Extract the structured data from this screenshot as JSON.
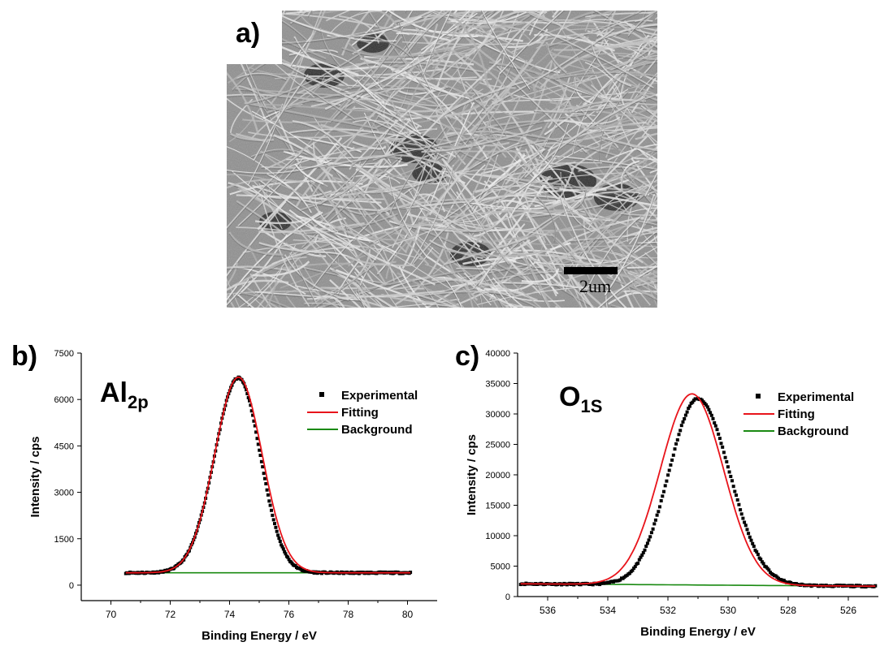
{
  "panels": {
    "a": {
      "label": "a)",
      "scale_bar_label": "2um"
    },
    "b": {
      "label": "b)",
      "peak_name": "Al",
      "peak_sub": "2p"
    },
    "c": {
      "label": "c)",
      "peak_name": "O",
      "peak_sub": "1S"
    }
  },
  "colors": {
    "experimental": "#000000",
    "fitting": "#e8141b",
    "background": "#1a8a12"
  },
  "chart_data": [
    {
      "type": "scatter",
      "panel": "b",
      "xlabel": "Binding Energy / eV",
      "ylabel": "Intensity / cps",
      "xlim": [
        69,
        81
      ],
      "ylim": [
        -500,
        7500
      ],
      "xticks": [
        70,
        72,
        74,
        76,
        78,
        80
      ],
      "yticks": [
        0,
        1500,
        3000,
        4500,
        6000,
        7500
      ],
      "x_reversed": false,
      "legend_position": "top-right",
      "series": [
        {
          "name": "Experimental",
          "kind": "points",
          "x_range": [
            70.5,
            80.1
          ],
          "peak_center": 74.3,
          "peak_height": 6700,
          "baseline": 400
        },
        {
          "name": "Fitting",
          "kind": "line",
          "peak_center": 74.3,
          "peak_height": 6720,
          "baseline": 400,
          "sigma": 0.8
        },
        {
          "name": "Background",
          "kind": "line",
          "y_start": 400,
          "y_end": 400
        }
      ]
    },
    {
      "type": "scatter",
      "panel": "c",
      "xlabel": "Binding Energy / eV",
      "ylabel": "Intensity / cps",
      "xlim": [
        537,
        525
      ],
      "ylim": [
        0,
        40000
      ],
      "xticks": [
        536,
        534,
        532,
        530,
        528,
        526
      ],
      "yticks": [
        0,
        5000,
        10000,
        15000,
        20000,
        25000,
        30000,
        35000,
        40000
      ],
      "x_reversed": true,
      "legend_position": "top-right",
      "series": [
        {
          "name": "Experimental",
          "kind": "points",
          "x_range": [
            536.9,
            525.1
          ],
          "peak_center": 531.0,
          "peak_height": 32500
        },
        {
          "name": "Fitting",
          "kind": "line",
          "peak_center": 531.2,
          "peak_height": 33300,
          "sigma": 1.05
        },
        {
          "name": "Background",
          "kind": "line",
          "y_start": 2100,
          "y_end": 1700
        }
      ]
    }
  ]
}
